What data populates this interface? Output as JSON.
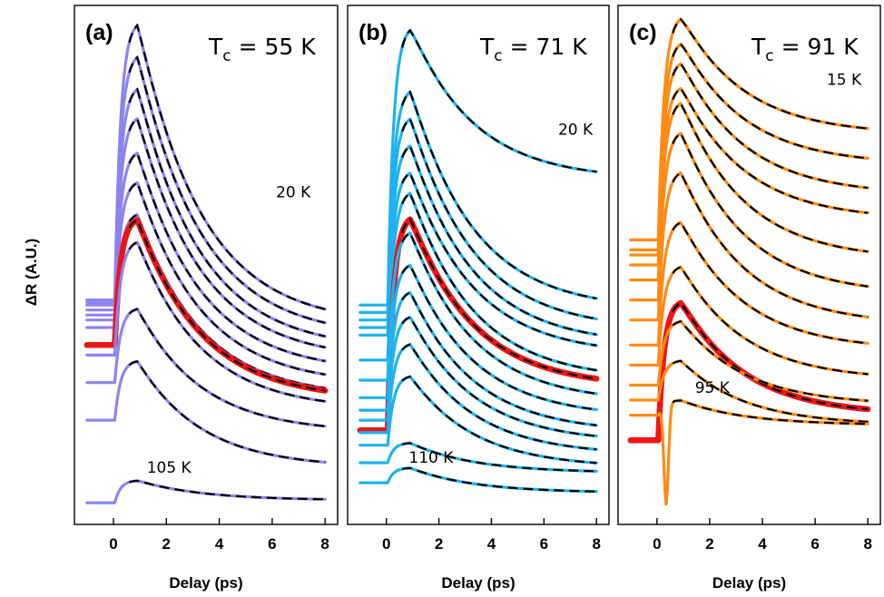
{
  "ylabel": "ΔR (A.U.)",
  "colors": {
    "a": "#8c84ee",
    "b": "#1fb2ee",
    "c": "#ff8a14",
    "highlight": "#ee1515",
    "fit": "#000000"
  },
  "chart_data": [
    {
      "id": "a",
      "type": "line",
      "panel_label": "(a)",
      "tc_label": "Tc = 55 K",
      "tc_main": "T",
      "tc_sub": "c",
      "tc_rest": " = 55 K",
      "xlabel": "Delay (ps)",
      "xlim": [
        -1.2,
        8.2
      ],
      "xticks": [
        0,
        2,
        4,
        6,
        8
      ],
      "annotations": [
        {
          "text": "20 K",
          "x": 6.8,
          "y": 0.635
        },
        {
          "text": "105 K",
          "x": 2.1,
          "y": 0.085
        }
      ],
      "series": [
        {
          "baseline": 0.43,
          "amplitude": 0.56,
          "end": 0.38,
          "highlight": false
        },
        {
          "baseline": 0.425,
          "amplitude": 0.5,
          "end": 0.355,
          "highlight": false
        },
        {
          "baseline": 0.42,
          "amplitude": 0.44,
          "end": 0.33,
          "highlight": false
        },
        {
          "baseline": 0.41,
          "amplitude": 0.39,
          "end": 0.31,
          "highlight": false
        },
        {
          "baseline": 0.4,
          "amplitude": 0.33,
          "end": 0.285,
          "highlight": false
        },
        {
          "baseline": 0.39,
          "amplitude": 0.28,
          "end": 0.26,
          "highlight": false
        },
        {
          "baseline": 0.375,
          "amplitude": 0.23,
          "end": 0.235,
          "highlight": false
        },
        {
          "baseline": 0.34,
          "amplitude": 0.255,
          "end": 0.23,
          "highlight": true
        },
        {
          "baseline": 0.32,
          "amplitude": 0.23,
          "end": 0.21,
          "highlight": false
        },
        {
          "baseline": 0.265,
          "amplitude": 0.15,
          "end": 0.165,
          "highlight": false
        },
        {
          "baseline": 0.19,
          "amplitude": 0.12,
          "end": 0.095,
          "highlight": false
        },
        {
          "baseline": 0.025,
          "amplitude": 0.045,
          "end": 0.03,
          "highlight": false
        }
      ]
    },
    {
      "id": "b",
      "type": "line",
      "panel_label": "(b)",
      "tc_label": "Tc = 71 K",
      "tc_main": "T",
      "tc_sub": "c",
      "tc_rest": " = 71 K",
      "xlabel": "Delay (ps)",
      "xlim": [
        -1.2,
        8.2
      ],
      "xticks": [
        0,
        2,
        4,
        6,
        8
      ],
      "annotations": [
        {
          "text": "20 K",
          "x": 7.2,
          "y": 0.76
        },
        {
          "text": "110 K",
          "x": 1.7,
          "y": 0.105
        }
      ],
      "series": [
        {
          "baseline": 0.42,
          "amplitude": 0.56,
          "end": 0.67,
          "highlight": false
        },
        {
          "baseline": 0.405,
          "amplitude": 0.45,
          "end": 0.41,
          "highlight": false
        },
        {
          "baseline": 0.39,
          "amplitude": 0.41,
          "end": 0.37,
          "highlight": false
        },
        {
          "baseline": 0.375,
          "amplitude": 0.37,
          "end": 0.34,
          "highlight": false
        },
        {
          "baseline": 0.36,
          "amplitude": 0.33,
          "end": 0.32,
          "highlight": false
        },
        {
          "baseline": 0.31,
          "amplitude": 0.34,
          "end": 0.27,
          "highlight": false
        },
        {
          "baseline": 0.17,
          "amplitude": 0.43,
          "end": 0.255,
          "highlight": true
        },
        {
          "baseline": 0.27,
          "amplitude": 0.3,
          "end": 0.225,
          "highlight": false
        },
        {
          "baseline": 0.235,
          "amplitude": 0.27,
          "end": 0.195,
          "highlight": false
        },
        {
          "baseline": 0.21,
          "amplitude": 0.24,
          "end": 0.165,
          "highlight": false
        },
        {
          "baseline": 0.19,
          "amplitude": 0.21,
          "end": 0.145,
          "highlight": false
        },
        {
          "baseline": 0.165,
          "amplitude": 0.18,
          "end": 0.12,
          "highlight": false
        },
        {
          "baseline": 0.14,
          "amplitude": 0.14,
          "end": 0.095,
          "highlight": false
        },
        {
          "baseline": 0.105,
          "amplitude": 0.04,
          "end": 0.085,
          "highlight": false
        },
        {
          "baseline": 0.065,
          "amplitude": 0.03,
          "end": 0.045,
          "highlight": false
        }
      ]
    },
    {
      "id": "c",
      "type": "line",
      "panel_label": "(c)",
      "tc_label": "Tc = 91 K",
      "tc_main": "T",
      "tc_sub": "c",
      "tc_rest": " = 91 K",
      "xlabel": "Delay (ps)",
      "xlim": [
        -1.2,
        8.2
      ],
      "xticks": [
        0,
        2,
        4,
        6,
        8
      ],
      "annotations": [
        {
          "text": "15 K",
          "x": 7.1,
          "y": 0.86
        },
        {
          "text": "95 K",
          "x": 2.1,
          "y": 0.245
        }
      ],
      "series": [
        {
          "baseline": 0.55,
          "amplitude": 0.45,
          "end": 0.76,
          "highlight": false
        },
        {
          "baseline": 0.53,
          "amplitude": 0.42,
          "end": 0.7,
          "highlight": false
        },
        {
          "baseline": 0.52,
          "amplitude": 0.39,
          "end": 0.64,
          "highlight": false
        },
        {
          "baseline": 0.5,
          "amplitude": 0.36,
          "end": 0.59,
          "highlight": false
        },
        {
          "baseline": 0.47,
          "amplitude": 0.36,
          "end": 0.51,
          "highlight": false
        },
        {
          "baseline": 0.43,
          "amplitude": 0.34,
          "end": 0.44,
          "highlight": false
        },
        {
          "baseline": 0.39,
          "amplitude": 0.3,
          "end": 0.38,
          "highlight": false
        },
        {
          "baseline": 0.34,
          "amplitude": 0.25,
          "end": 0.33,
          "highlight": false
        },
        {
          "baseline": 0.3,
          "amplitude": 0.2,
          "end": 0.27,
          "highlight": false
        },
        {
          "baseline": 0.15,
          "amplitude": 0.28,
          "end": 0.2,
          "highlight": true
        },
        {
          "baseline": 0.26,
          "amplitude": 0.13,
          "end": 0.22,
          "highlight": false
        },
        {
          "baseline": 0.23,
          "amplitude": 0.08,
          "end": 0.18,
          "highlight": false
        },
        {
          "baseline": 0.2,
          "amplitude": 0.03,
          "end": 0.18,
          "dip": 0.2,
          "highlight": false
        }
      ]
    }
  ]
}
